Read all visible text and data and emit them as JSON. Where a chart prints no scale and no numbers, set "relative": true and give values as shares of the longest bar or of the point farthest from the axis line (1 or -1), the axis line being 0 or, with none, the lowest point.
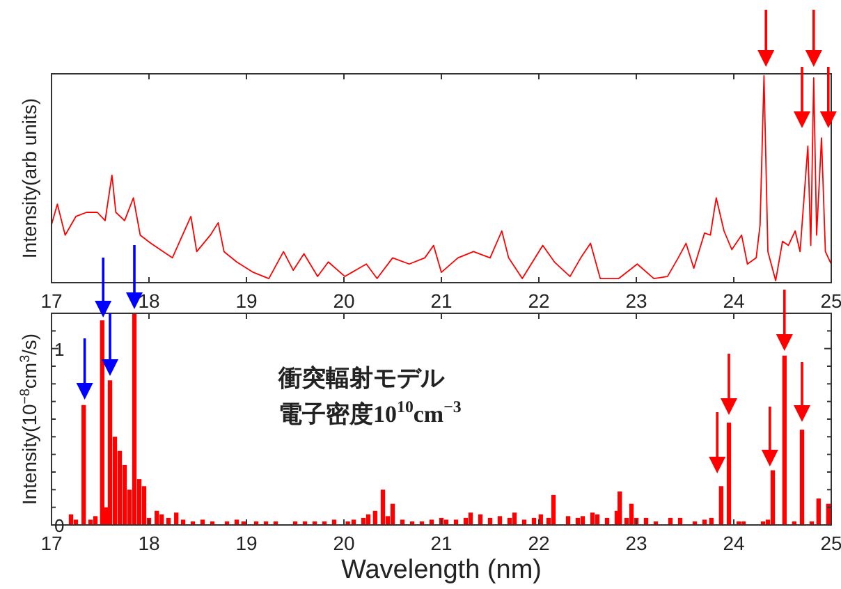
{
  "chart_data": [
    {
      "type": "line",
      "ylabel": "Intensity(arb units)",
      "relative": true,
      "xlim": [
        17,
        25
      ],
      "xticks": [
        17,
        18,
        19,
        20,
        21,
        22,
        23,
        24,
        25
      ],
      "x": [
        17.0,
        17.06,
        17.14,
        17.25,
        17.36,
        17.47,
        17.55,
        17.62,
        17.66,
        17.75,
        17.84,
        17.91,
        18.02,
        18.24,
        18.43,
        18.49,
        18.63,
        18.71,
        18.77,
        18.9,
        19.07,
        19.23,
        19.38,
        19.48,
        19.59,
        19.73,
        19.84,
        20.01,
        20.23,
        20.34,
        20.5,
        20.67,
        20.83,
        20.92,
        21.0,
        21.17,
        21.33,
        21.5,
        21.62,
        21.69,
        21.83,
        22.04,
        22.16,
        22.32,
        22.43,
        22.53,
        22.63,
        22.82,
        23.01,
        23.18,
        23.32,
        23.43,
        23.51,
        23.59,
        23.7,
        23.76,
        23.82,
        23.9,
        23.98,
        24.08,
        24.14,
        24.23,
        24.27,
        24.31,
        24.35,
        24.43,
        24.5,
        24.56,
        24.63,
        24.68,
        24.76,
        24.79,
        24.82,
        24.85,
        24.9,
        24.94,
        25.0
      ],
      "series": [
        {
          "color": "#ff0000",
          "values": [
            0.28,
            0.38,
            0.23,
            0.32,
            0.34,
            0.34,
            0.3,
            0.52,
            0.34,
            0.3,
            0.41,
            0.23,
            0.19,
            0.12,
            0.32,
            0.15,
            0.23,
            0.29,
            0.15,
            0.1,
            0.05,
            0.02,
            0.15,
            0.06,
            0.14,
            0.03,
            0.1,
            0.03,
            0.09,
            0.02,
            0.12,
            0.09,
            0.12,
            0.18,
            0.05,
            0.12,
            0.15,
            0.12,
            0.25,
            0.12,
            0.02,
            0.18,
            0.1,
            0.03,
            0.12,
            0.19,
            0.02,
            0.02,
            0.09,
            0.02,
            0.03,
            0.12,
            0.19,
            0.07,
            0.24,
            0.23,
            0.41,
            0.25,
            0.16,
            0.23,
            0.09,
            0.12,
            0.28,
            1.0,
            0.15,
            0.01,
            0.2,
            0.18,
            0.25,
            0.15,
            0.66,
            0.18,
            0.99,
            0.23,
            0.7,
            0.15,
            0.09
          ]
        }
      ]
    },
    {
      "type": "bar",
      "xlabel": "Wavelength (nm)",
      "ylabel": "Intensity(10$^{−8}$cm$^{3}$/s)",
      "annotations": [
        "衝突輻射モデル",
        "電子密度10$^{10}$cm$^{−3}$"
      ],
      "xlim": [
        17,
        25
      ],
      "xticks": [
        17,
        18,
        19,
        20,
        21,
        22,
        23,
        24,
        25
      ],
      "ylim": [
        0,
        1.2
      ],
      "yticks": [
        0,
        {
          "value": 0.1,
          "label": null
        },
        {
          "value": 0.2,
          "label": null
        },
        {
          "value": 0.3,
          "label": null
        },
        {
          "value": 0.4,
          "label": null
        },
        {
          "value": 0.5,
          "label": null
        },
        {
          "value": 0.6,
          "label": null
        },
        {
          "value": 0.7,
          "label": null
        },
        {
          "value": 0.8,
          "label": null
        },
        {
          "value": 0.9,
          "label": null
        },
        1,
        {
          "value": 1.1,
          "label": null
        }
      ],
      "x": [
        17.2,
        17.25,
        17.33,
        17.4,
        17.45,
        17.52,
        17.56,
        17.6,
        17.65,
        17.7,
        17.75,
        17.8,
        17.85,
        17.9,
        17.95,
        18.0,
        18.08,
        18.13,
        18.2,
        18.28,
        18.35,
        18.45,
        18.55,
        18.65,
        18.8,
        18.9,
        18.97,
        19.1,
        19.2,
        19.3,
        19.5,
        19.6,
        19.7,
        19.8,
        19.9,
        20.04,
        20.1,
        20.2,
        20.25,
        20.32,
        20.4,
        20.45,
        20.5,
        20.6,
        20.7,
        20.8,
        20.9,
        21.0,
        21.05,
        21.15,
        21.25,
        21.3,
        21.4,
        21.5,
        21.6,
        21.7,
        21.75,
        21.85,
        21.95,
        22.02,
        22.1,
        22.15,
        22.3,
        22.4,
        22.45,
        22.55,
        22.6,
        22.7,
        22.8,
        22.83,
        22.9,
        22.95,
        23.0,
        23.1,
        23.2,
        23.35,
        23.45,
        23.6,
        23.7,
        23.77,
        23.87,
        23.95,
        24.05,
        24.1,
        24.3,
        24.35,
        24.4,
        24.52,
        24.62,
        24.7,
        24.8,
        24.87,
        24.97
      ],
      "series": [
        {
          "color": "#ff0000",
          "values": [
            0.06,
            0.03,
            0.68,
            0.03,
            0.05,
            1.16,
            0.1,
            0.82,
            0.5,
            0.42,
            0.34,
            0.2,
            1.2,
            0.26,
            0.22,
            0.04,
            0.08,
            0.06,
            0.04,
            0.07,
            0.03,
            0.02,
            0.03,
            0.02,
            0.02,
            0.03,
            0.02,
            0.02,
            0.02,
            0.02,
            0.02,
            0.02,
            0.02,
            0.02,
            0.03,
            0.02,
            0.03,
            0.04,
            0.06,
            0.08,
            0.2,
            0.05,
            0.12,
            0.03,
            0.02,
            0.02,
            0.03,
            0.04,
            0.03,
            0.03,
            0.04,
            0.07,
            0.06,
            0.04,
            0.05,
            0.04,
            0.07,
            0.03,
            0.04,
            0.06,
            0.04,
            0.17,
            0.05,
            0.04,
            0.05,
            0.07,
            0.06,
            0.04,
            0.08,
            0.19,
            0.04,
            0.12,
            0.04,
            0.04,
            0.02,
            0.04,
            0.04,
            0.02,
            0.03,
            0.04,
            0.22,
            0.58,
            0.02,
            0.02,
            0.02,
            0.03,
            0.31,
            0.96,
            0.02,
            0.54,
            0.02,
            0.15,
            0.12
          ]
        }
      ]
    }
  ]
}
